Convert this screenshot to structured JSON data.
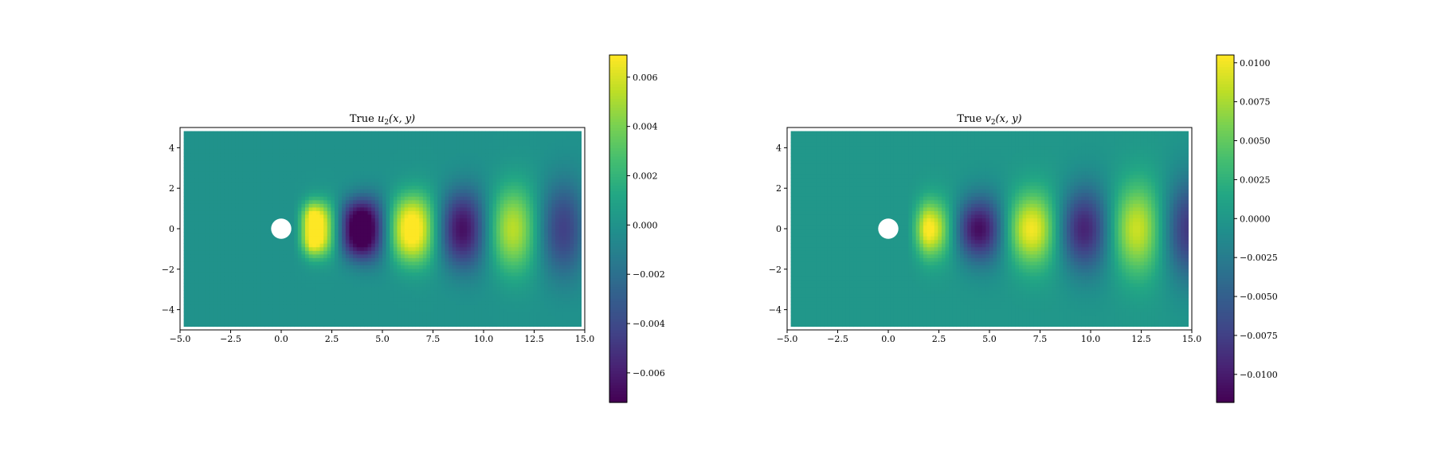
{
  "chart_data": [
    {
      "type": "heatmap",
      "title": "True u_2(x, y)",
      "title_main": "True ",
      "title_var": "u",
      "title_sub": "2",
      "title_args": "(x, y)",
      "xlabel": "",
      "ylabel": "",
      "xlim": [
        -5.0,
        15.0
      ],
      "ylim": [
        -5.0,
        5.0
      ],
      "xticks": [
        "−5.0",
        "−2.5",
        "0.0",
        "2.5",
        "5.0",
        "7.5",
        "10.0",
        "12.5",
        "15.0"
      ],
      "xtick_values": [
        -5.0,
        -2.5,
        0.0,
        2.5,
        5.0,
        7.5,
        10.0,
        12.5,
        15.0
      ],
      "yticks": [
        "−4",
        "−2",
        "0",
        "2",
        "4"
      ],
      "ytick_values": [
        -4,
        -2,
        0,
        2,
        4
      ],
      "colormap": "viridis",
      "colorbar": {
        "range": [
          -0.0072,
          0.0069
        ],
        "ticks": [
          "−0.006",
          "−0.004",
          "−0.002",
          "0.000",
          "0.002",
          "0.004",
          "0.006"
        ],
        "tick_values": [
          -0.006,
          -0.004,
          -0.002,
          0.0,
          0.002,
          0.004,
          0.006
        ]
      },
      "obstacle": {
        "shape": "circle",
        "center": [
          0,
          0
        ],
        "radius": 0.5
      },
      "field": "antisymmetric_wake"
    },
    {
      "type": "heatmap",
      "title": "True v_2(x, y)",
      "title_main": "True ",
      "title_var": "v",
      "title_sub": "2",
      "title_args": "(x, y)",
      "xlabel": "",
      "ylabel": "",
      "xlim": [
        -5.0,
        15.0
      ],
      "ylim": [
        -5.0,
        5.0
      ],
      "xticks": [
        "−5.0",
        "−2.5",
        "0.0",
        "2.5",
        "5.0",
        "7.5",
        "10.0",
        "12.5",
        "15.0"
      ],
      "xtick_values": [
        -5.0,
        -2.5,
        0.0,
        2.5,
        5.0,
        7.5,
        10.0,
        12.5,
        15.0
      ],
      "yticks": [
        "−4",
        "−2",
        "0",
        "2",
        "4"
      ],
      "ytick_values": [
        -4,
        -2,
        0,
        2,
        4
      ],
      "colormap": "viridis",
      "colorbar": {
        "range": [
          -0.0118,
          0.0105
        ],
        "ticks": [
          "−0.0100",
          "−0.0075",
          "−0.0050",
          "−0.0025",
          "0.0000",
          "0.0025",
          "0.0050",
          "0.0075",
          "0.0100"
        ],
        "tick_values": [
          -0.01,
          -0.0075,
          -0.005,
          -0.0025,
          0.0,
          0.0025,
          0.005,
          0.0075,
          0.01
        ]
      },
      "obstacle": {
        "shape": "circle",
        "center": [
          0,
          0
        ],
        "radius": 0.5
      },
      "field": "symmetric_wake"
    }
  ]
}
